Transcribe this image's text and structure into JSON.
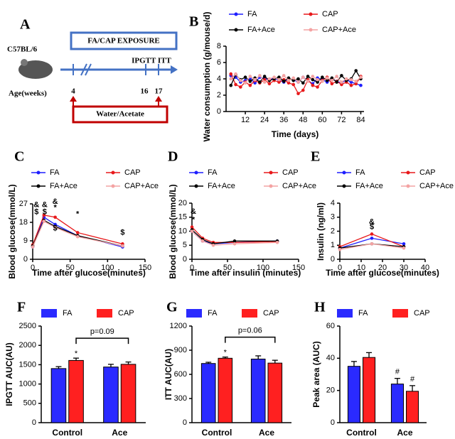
{
  "schematic": {
    "panel": "A",
    "strain": "C57BL/6",
    "age_label": "Age(weeks)",
    "exposure": "FA/CAP EXPOSURE",
    "tests": "IPGTT ITT",
    "weeks": [
      "4",
      "16",
      "17"
    ],
    "treatment": "Water/Acetate"
  },
  "chart_data": [
    {
      "type": "line",
      "panel": "B",
      "y_label": "Water consumption (g/mouse/d)",
      "x_label": "Time (days)",
      "x": [
        3,
        6,
        9,
        12,
        15,
        18,
        21,
        24,
        27,
        30,
        33,
        36,
        39,
        42,
        45,
        48,
        51,
        54,
        57,
        60,
        63,
        66,
        69,
        72,
        75,
        78,
        81,
        84
      ],
      "xlim": [
        0,
        86
      ],
      "xticks": [
        12,
        24,
        36,
        48,
        60,
        72,
        84
      ],
      "ylim": [
        0,
        8
      ],
      "yticks": [
        0,
        2,
        4,
        6,
        8
      ],
      "series": [
        {
          "name": "FA",
          "color": "#1f1fff",
          "values": [
            4.4,
            4.2,
            3.6,
            3.8,
            4.0,
            3.5,
            4.2,
            4.0,
            3.9,
            4.1,
            3.8,
            3.6,
            4.0,
            3.9,
            3.6,
            4.2,
            3.8,
            3.4,
            4.1,
            3.9,
            3.6,
            4.0,
            3.7,
            3.5,
            3.9,
            3.6,
            3.4,
            3.2
          ]
        },
        {
          "name": "CAP",
          "color": "#e8191b",
          "values": [
            4.6,
            3.3,
            3.0,
            3.6,
            3.2,
            3.8,
            3.5,
            3.9,
            3.4,
            3.8,
            3.6,
            3.9,
            3.5,
            3.3,
            2.2,
            2.6,
            3.9,
            3.2,
            3.0,
            3.8,
            4.2,
            3.4,
            3.7,
            3.3,
            3.6,
            3.2,
            3.4,
            4.3
          ]
        },
        {
          "name": "FA+Ace",
          "color": "#000000",
          "values": [
            3.2,
            4.5,
            3.9,
            4.2,
            3.7,
            4.1,
            3.6,
            4.3,
            3.8,
            4.0,
            4.2,
            3.7,
            4.1,
            3.8,
            4.0,
            3.5,
            4.3,
            3.9,
            3.6,
            4.2,
            3.8,
            4.1,
            3.6,
            4.4,
            3.8,
            4.0,
            5.0,
            4.0
          ]
        },
        {
          "name": "CAP+Ace",
          "color": "#f4a3a3",
          "values": [
            4.0,
            4.6,
            3.8,
            3.5,
            4.3,
            3.9,
            4.4,
            3.6,
            4.0,
            4.2,
            3.9,
            4.4,
            3.8,
            4.1,
            3.6,
            4.2,
            3.7,
            4.3,
            3.9,
            3.7,
            4.1,
            3.8,
            4.3,
            3.6,
            4.0,
            3.9,
            3.7,
            4.2
          ]
        }
      ]
    },
    {
      "type": "line",
      "panel": "C",
      "y_label": "Blood glucose(mmol/L)",
      "x_label": "Time after glucose(minutes)",
      "x": [
        0,
        15,
        30,
        60,
        120
      ],
      "xlim": [
        0,
        150
      ],
      "xticks": [
        0,
        50,
        100,
        150
      ],
      "ylim": [
        0,
        27
      ],
      "yticks": [
        0,
        9,
        18,
        27
      ],
      "series": [
        {
          "name": "FA",
          "color": "#1f1fff",
          "values": [
            6,
            20.5,
            17,
            11.5,
            6
          ]
        },
        {
          "name": "CAP",
          "color": "#e8191b",
          "values": [
            7,
            21.5,
            20.5,
            13,
            7.5
          ]
        },
        {
          "name": "FA+Ace",
          "color": "#000000",
          "values": [
            6.5,
            19,
            16,
            11.5,
            6.5
          ]
        },
        {
          "name": "CAP+Ace",
          "color": "#f4a3a3",
          "values": [
            6,
            18.5,
            15.5,
            11,
            6.5
          ]
        }
      ],
      "annotations": [
        {
          "x": 5,
          "y": 26.5,
          "label": "&"
        },
        {
          "x": 16,
          "y": 26.5,
          "label": "&"
        },
        {
          "x": 5,
          "y": 23,
          "label": "$"
        },
        {
          "x": 16,
          "y": 23,
          "label": "$"
        },
        {
          "x": 30,
          "y": 28,
          "label": "&"
        },
        {
          "x": 30,
          "y": 25,
          "label": "*"
        },
        {
          "x": 30,
          "y": 15,
          "label": "$"
        },
        {
          "x": 60,
          "y": 22,
          "label": "*"
        },
        {
          "x": 120,
          "y": 13,
          "label": "$"
        }
      ]
    },
    {
      "type": "line",
      "panel": "D",
      "y_label": "Blood glucose(mmol/L)",
      "x_label": "Time after insulin (minutes)",
      "x": [
        0,
        15,
        30,
        60,
        120
      ],
      "xlim": [
        0,
        150
      ],
      "xticks": [
        0,
        50,
        100,
        150
      ],
      "ylim": [
        0,
        20
      ],
      "yticks": [
        0,
        5,
        10,
        15,
        20
      ],
      "series": [
        {
          "name": "FA",
          "color": "#1f1fff",
          "values": [
            10,
            6.5,
            5.5,
            6,
            6.5
          ]
        },
        {
          "name": "CAP",
          "color": "#e8191b",
          "values": [
            11.5,
            7.5,
            6,
            6,
            6.3
          ]
        },
        {
          "name": "FA+Ace",
          "color": "#000000",
          "values": [
            10.5,
            7,
            5.5,
            6.5,
            6.5
          ]
        },
        {
          "name": "CAP+Ace",
          "color": "#f4a3a3",
          "values": [
            10,
            6.5,
            5,
            5.5,
            6
          ]
        }
      ],
      "annotations": [
        {
          "x": 2,
          "y": 17,
          "label": "&"
        },
        {
          "x": 2,
          "y": 14,
          "label": "*"
        }
      ]
    },
    {
      "type": "line",
      "panel": "E",
      "y_label": "Insulin (ng/ml)",
      "x_label": "Time after glucose(minutes)",
      "x": [
        0,
        15,
        30
      ],
      "xlim": [
        0,
        40
      ],
      "xticks": [
        0,
        10,
        20,
        30,
        40
      ],
      "ylim": [
        0,
        4
      ],
      "yticks": [
        0,
        1,
        2,
        3,
        4
      ],
      "series": [
        {
          "name": "FA",
          "color": "#1f1fff",
          "values": [
            0.8,
            1.5,
            1.1
          ]
        },
        {
          "name": "CAP",
          "color": "#e8191b",
          "values": [
            0.9,
            1.8,
            0.9
          ]
        },
        {
          "name": "FA+Ace",
          "color": "#000000",
          "values": [
            0.8,
            1.1,
            0.9
          ]
        },
        {
          "name": "CAP+Ace",
          "color": "#f4a3a3",
          "values": [
            0.7,
            1.1,
            0.8
          ]
        }
      ],
      "annotations": [
        {
          "x": 15,
          "y": 2.65,
          "label": "&"
        },
        {
          "x": 15,
          "y": 2.3,
          "label": "$"
        }
      ]
    },
    {
      "type": "bar",
      "panel": "F",
      "y_label": "IPGTT AUC(AU)",
      "categories": [
        "Control",
        "Ace"
      ],
      "ylim": [
        0,
        2500
      ],
      "yticks": [
        0,
        500,
        1000,
        1500,
        2000,
        2500
      ],
      "series": [
        {
          "name": "FA",
          "color": "#2a2aff",
          "values": [
            1400,
            1440
          ],
          "errors": [
            50,
            70
          ]
        },
        {
          "name": "CAP",
          "color": "#ff2020",
          "values": [
            1610,
            1510
          ],
          "errors": [
            60,
            60
          ]
        }
      ],
      "annotations": [
        {
          "category": 0,
          "series": 1,
          "label": "*"
        }
      ],
      "comparison": "p=0.09"
    },
    {
      "type": "bar",
      "panel": "G",
      "y_label": "ITT AUC(AU)",
      "categories": [
        "Control",
        "Ace"
      ],
      "ylim": [
        0,
        1200
      ],
      "yticks": [
        0,
        300,
        600,
        900,
        1200
      ],
      "series": [
        {
          "name": "FA",
          "color": "#2a2aff",
          "values": [
            735,
            790
          ],
          "errors": [
            15,
            40
          ]
        },
        {
          "name": "CAP",
          "color": "#ff2020",
          "values": [
            800,
            740
          ],
          "errors": [
            15,
            35
          ]
        }
      ],
      "annotations": [
        {
          "category": 0,
          "series": 1,
          "label": "*"
        }
      ],
      "comparison": "p=0.06"
    },
    {
      "type": "bar",
      "panel": "H",
      "y_label": "Peak area (AUC)",
      "categories": [
        "Control",
        "Ace"
      ],
      "ylim": [
        0,
        60
      ],
      "yticks": [
        0,
        20,
        40,
        60
      ],
      "series": [
        {
          "name": "FA",
          "color": "#2a2aff",
          "values": [
            35,
            24
          ],
          "errors": [
            3,
            3.5
          ]
        },
        {
          "name": "CAP",
          "color": "#ff2020",
          "values": [
            40.5,
            19.5
          ],
          "errors": [
            3,
            3.5
          ]
        }
      ],
      "annotations": [
        {
          "category": 1,
          "series": 0,
          "label": "#"
        },
        {
          "category": 1,
          "series": 1,
          "label": "#"
        }
      ]
    }
  ]
}
